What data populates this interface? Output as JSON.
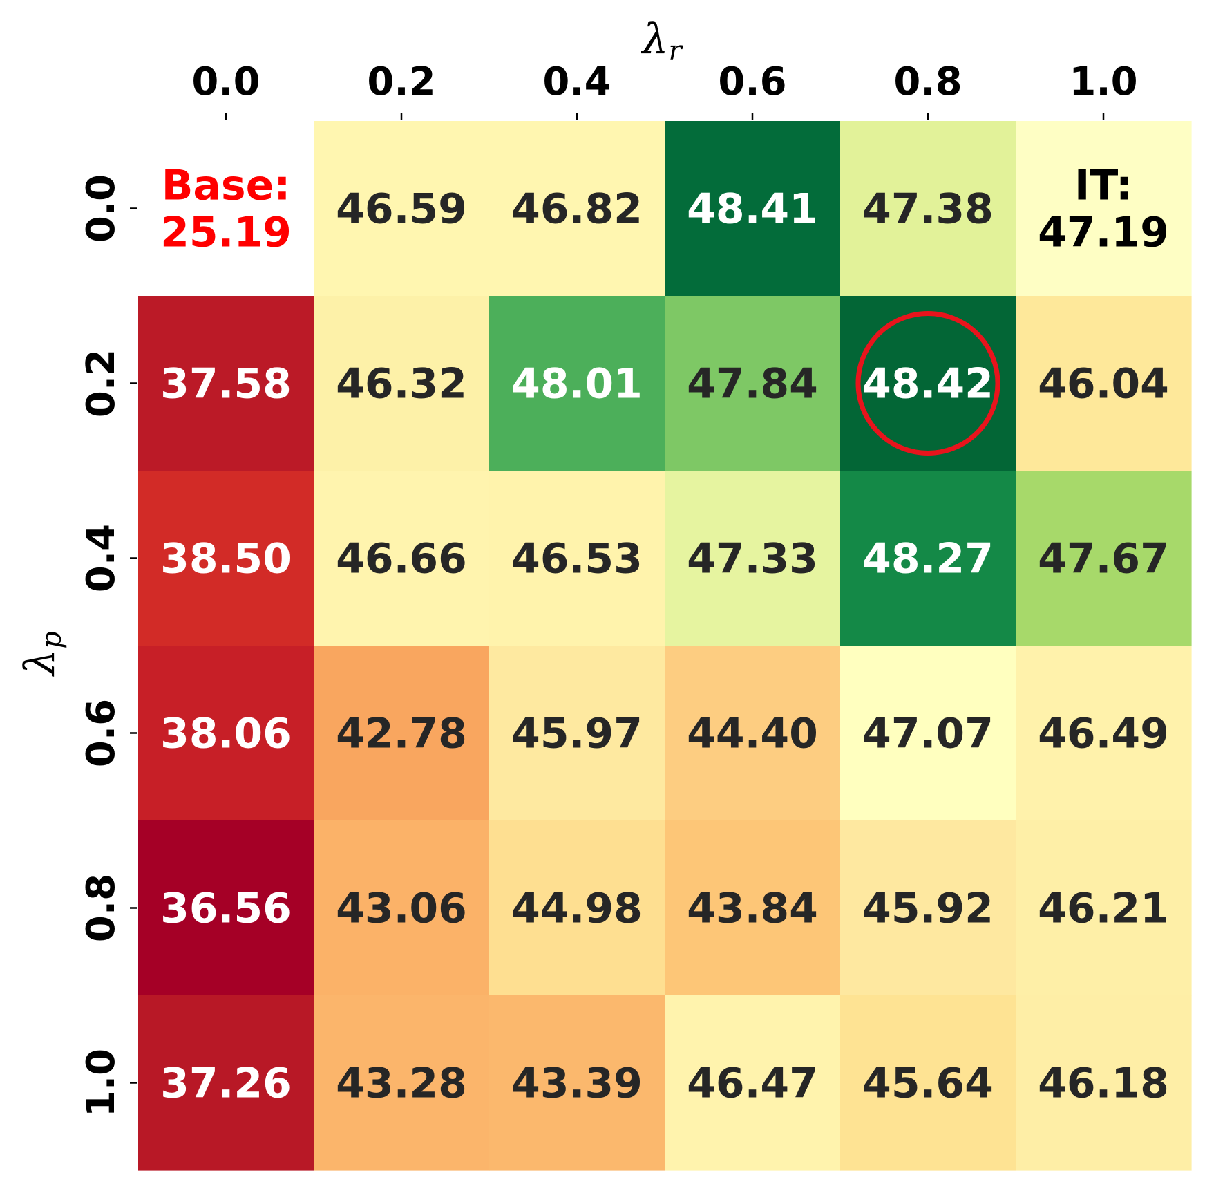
{
  "chart_data": {
    "type": "heatmap",
    "xlabel_symbol": "λ",
    "xlabel_subscript": "r",
    "ylabel_symbol": "λ",
    "ylabel_subscript": "p",
    "x_categories": [
      "0.0",
      "0.2",
      "0.4",
      "0.6",
      "0.8",
      "1.0"
    ],
    "y_categories": [
      "0.0",
      "0.2",
      "0.4",
      "0.6",
      "0.8",
      "1.0"
    ],
    "x_axis_position": "top",
    "colormap": "RdYlGn",
    "color_range": [
      36.56,
      48.42
    ],
    "values": [
      [
        null,
        46.59,
        46.82,
        48.41,
        47.38,
        null
      ],
      [
        37.58,
        46.32,
        48.01,
        47.84,
        48.42,
        46.04
      ],
      [
        38.5,
        46.66,
        46.53,
        47.33,
        48.27,
        47.67
      ],
      [
        38.06,
        42.78,
        45.97,
        44.4,
        47.07,
        46.49
      ],
      [
        36.56,
        43.06,
        44.98,
        43.84,
        45.92,
        46.21
      ],
      [
        37.26,
        43.28,
        43.39,
        46.47,
        45.64,
        46.18
      ]
    ],
    "labels": [
      [
        "",
        "46.59",
        "46.82",
        "48.41",
        "47.38",
        ""
      ],
      [
        "37.58",
        "46.32",
        "48.01",
        "47.84",
        "48.42",
        "46.04"
      ],
      [
        "38.50",
        "46.66",
        "46.53",
        "47.33",
        "48.27",
        "47.67"
      ],
      [
        "38.06",
        "42.78",
        "45.97",
        "44.40",
        "47.07",
        "46.49"
      ],
      [
        "36.56",
        "43.06",
        "44.98",
        "43.84",
        "45.92",
        "46.21"
      ],
      [
        "37.26",
        "43.28",
        "43.39",
        "46.47",
        "45.64",
        "46.18"
      ]
    ],
    "cell_fill": [
      [
        null,
        "#fff6b0",
        "#fff6b0",
        "#036c3a",
        "#e2f299",
        "#fefec4"
      ],
      [
        "#bb1a27",
        "#fdf1a8",
        "#4caf5a",
        "#7ec865",
        "#036636",
        "#fee89a"
      ],
      [
        "#d22b27",
        "#fff4ae",
        "#fff3ac",
        "#e6f4a0",
        "#148947",
        "#a7d96a"
      ],
      [
        "#c71f27",
        "#f9a65f",
        "#fee9a0",
        "#fdcd81",
        "#ffffbf",
        "#fff2ab"
      ],
      [
        "#a50026",
        "#fbb268",
        "#fedf91",
        "#fdc677",
        "#fee8a0",
        "#feefa7"
      ],
      [
        "#b81826",
        "#fbb56b",
        "#fbb86d",
        "#fff3ad",
        "#fee393",
        "#feeea6"
      ]
    ],
    "corner_annotations": [
      {
        "row": 0,
        "col": 0,
        "line1": "Base:",
        "line2": "25.19",
        "color": "#ff0000"
      },
      {
        "row": 0,
        "col": 5,
        "line1": "IT:",
        "line2": "47.19",
        "color": "#000000"
      }
    ],
    "highlight": {
      "row": 1,
      "col": 4,
      "shape": "circle",
      "color": "#e8141c"
    },
    "text_color_dark": "#262626",
    "text_color_light": "#ffffff",
    "light_text_threshold": 47.9
  }
}
